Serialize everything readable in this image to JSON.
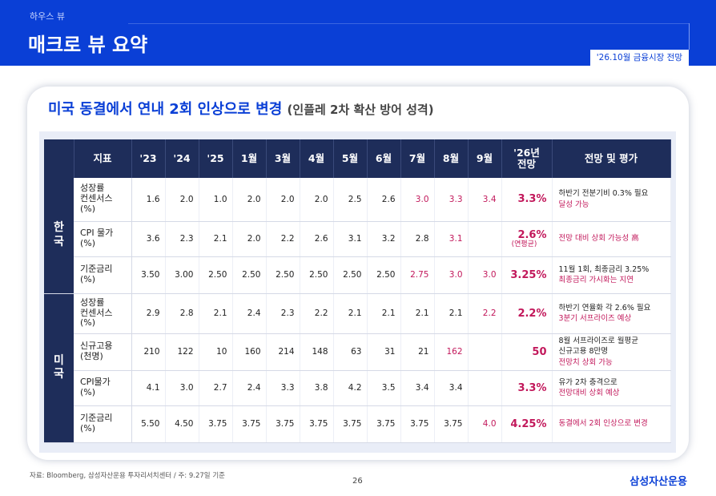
{
  "header": {
    "section": "하우스 뷰",
    "title": "매크로 뷰 요약",
    "tag": "'26.10월 금융시장 전망"
  },
  "card": {
    "title": "미국 동결에서 연내 2회 인상으로 변경",
    "subtitle": "(인플레 2차 확산 방어 성격)"
  },
  "table": {
    "headers": [
      "지표",
      "'23",
      "'24",
      "'25",
      "1월",
      "3월",
      "4월",
      "5월",
      "6월",
      "7월",
      "8월",
      "9월",
      "'26년\n전망",
      "전망 및 평가"
    ],
    "regions": [
      {
        "name": "한\n국",
        "rows": [
          {
            "indicator": "성장률\n컨센서스\n(%)",
            "values": [
              "1.6",
              "2.0",
              "1.0",
              "2.0",
              "2.0",
              "2.0",
              "2.5",
              "2.6",
              "3.0",
              "3.3",
              "3.4"
            ],
            "red_from": 8,
            "forecast": "3.3%",
            "forecast_note": "",
            "note1": "하반기 전분기비 0.3% 필요",
            "note2": "달성 가능"
          },
          {
            "indicator": "CPI 물가\n(%)",
            "values": [
              "3.6",
              "2.3",
              "2.1",
              "2.0",
              "2.2",
              "2.6",
              "3.1",
              "3.2",
              "2.8",
              "3.1",
              ""
            ],
            "red_from": 9,
            "forecast": "2.6%",
            "forecast_note": "(연평균)",
            "note1": "",
            "note2": "전망 대비 상회 가능성 高"
          },
          {
            "indicator": "기준금리\n(%)",
            "values": [
              "3.50",
              "3.00",
              "2.50",
              "2.50",
              "2.50",
              "2.50",
              "2.50",
              "2.50",
              "2.75",
              "3.0",
              "3.0"
            ],
            "red_from": 8,
            "forecast": "3.25%",
            "forecast_note": "",
            "note1": "11월 1회, 최종금리 3.25%",
            "note2": "최종금리 가시화는 지연"
          }
        ]
      },
      {
        "name": "미\n국",
        "rows": [
          {
            "indicator": "성장률\n컨센서스\n(%)",
            "values": [
              "2.9",
              "2.8",
              "2.1",
              "2.4",
              "2.3",
              "2.2",
              "2.1",
              "2.1",
              "2.1",
              "2.1",
              "2.2"
            ],
            "red_from": 10,
            "forecast": "2.2%",
            "forecast_note": "",
            "note1": "하반기 연율화 각 2.6% 필요",
            "note2": "3분기 서프라이즈 예상"
          },
          {
            "indicator": "신규고용\n(천명)",
            "values": [
              "210",
              "122",
              "10",
              "160",
              "214",
              "148",
              "63",
              "31",
              "21",
              "162",
              ""
            ],
            "red_from": 9,
            "forecast": "50",
            "forecast_note": "",
            "note1": "8월 서프라이즈로 월평균\n신규고용 8만명",
            "note2": "전망치 상회 가능"
          },
          {
            "indicator": "CPI물가\n(%)",
            "values": [
              "4.1",
              "3.0",
              "2.7",
              "2.4",
              "3.3",
              "3.8",
              "4.2",
              "3.5",
              "3.4",
              "3.4",
              ""
            ],
            "red_from": 99,
            "forecast": "3.3%",
            "forecast_note": "",
            "note1": "유가 2차 충격으로",
            "note2": "전망대비 상회 예상"
          },
          {
            "indicator": "기준금리\n(%)",
            "values": [
              "5.50",
              "4.50",
              "3.75",
              "3.75",
              "3.75",
              "3.75",
              "3.75",
              "3.75",
              "3.75",
              "3.75",
              "4.0"
            ],
            "red_from": 10,
            "forecast": "4.25%",
            "forecast_note": "",
            "note1": "",
            "note2": "동결에서 2회 인상으로 변경"
          }
        ]
      }
    ]
  },
  "footer": {
    "source": "자료: Bloomberg, 삼성자산운용 투자리서치센터 / 주: 9.27일 기준",
    "page": "26",
    "brand": "삼성자산운용"
  },
  "colors": {
    "brand_blue": "#0a3fd6",
    "navy": "#1e2d5a",
    "highlight_red": "#c2185b"
  }
}
